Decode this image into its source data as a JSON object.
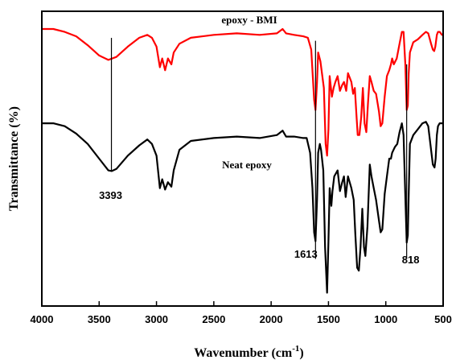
{
  "chart_data": {
    "type": "line",
    "xlabel": "Wavenumber (cm",
    "xlabel_sup": "-1",
    "xlabel_close": ")",
    "ylabel": "Transmittance (%)",
    "xlim": [
      4000,
      500
    ],
    "ylim": [
      0,
      100
    ],
    "x_reversed": true,
    "y_ticks_shown": false,
    "xticks": [
      "4000",
      "3500",
      "3000",
      "2500",
      "2000",
      "1500",
      "1000",
      "500"
    ],
    "grid": false,
    "series": [
      {
        "name": "epoxy - BMI",
        "color": "#ff0000",
        "points": [
          [
            4000,
            94
          ],
          [
            3900,
            94
          ],
          [
            3800,
            93
          ],
          [
            3700,
            91.5
          ],
          [
            3600,
            88.5
          ],
          [
            3500,
            85
          ],
          [
            3420,
            83.5
          ],
          [
            3350,
            84.5
          ],
          [
            3250,
            88
          ],
          [
            3150,
            91
          ],
          [
            3080,
            92
          ],
          [
            3040,
            91
          ],
          [
            3000,
            88
          ],
          [
            2970,
            81
          ],
          [
            2950,
            84
          ],
          [
            2925,
            80
          ],
          [
            2900,
            84
          ],
          [
            2870,
            82
          ],
          [
            2850,
            86
          ],
          [
            2800,
            89
          ],
          [
            2700,
            91
          ],
          [
            2500,
            92
          ],
          [
            2300,
            92.5
          ],
          [
            2100,
            92
          ],
          [
            1950,
            92.5
          ],
          [
            1900,
            94
          ],
          [
            1870,
            92.5
          ],
          [
            1800,
            92
          ],
          [
            1720,
            91.5
          ],
          [
            1680,
            91
          ],
          [
            1650,
            87
          ],
          [
            1625,
            70
          ],
          [
            1613,
            66.5
          ],
          [
            1600,
            76
          ],
          [
            1590,
            86
          ],
          [
            1570,
            83
          ],
          [
            1540,
            74
          ],
          [
            1525,
            55
          ],
          [
            1512,
            51
          ],
          [
            1500,
            60
          ],
          [
            1490,
            78
          ],
          [
            1470,
            71
          ],
          [
            1455,
            74
          ],
          [
            1440,
            76
          ],
          [
            1420,
            78
          ],
          [
            1400,
            73
          ],
          [
            1380,
            75
          ],
          [
            1365,
            76
          ],
          [
            1345,
            73
          ],
          [
            1330,
            79
          ],
          [
            1300,
            76
          ],
          [
            1285,
            72
          ],
          [
            1270,
            74
          ],
          [
            1255,
            64
          ],
          [
            1245,
            58
          ],
          [
            1230,
            58
          ],
          [
            1215,
            64
          ],
          [
            1200,
            74
          ],
          [
            1185,
            62
          ],
          [
            1170,
            59
          ],
          [
            1155,
            69
          ],
          [
            1140,
            78
          ],
          [
            1125,
            76
          ],
          [
            1105,
            73
          ],
          [
            1085,
            72
          ],
          [
            1060,
            66
          ],
          [
            1045,
            61
          ],
          [
            1030,
            62
          ],
          [
            1010,
            71
          ],
          [
            990,
            78
          ],
          [
            970,
            80
          ],
          [
            955,
            82
          ],
          [
            945,
            84
          ],
          [
            930,
            82
          ],
          [
            905,
            84
          ],
          [
            880,
            89
          ],
          [
            860,
            93
          ],
          [
            845,
            93
          ],
          [
            830,
            82
          ],
          [
            818,
            66.5
          ],
          [
            808,
            68
          ],
          [
            800,
            79
          ],
          [
            790,
            86
          ],
          [
            760,
            89.5
          ],
          [
            720,
            90.5
          ],
          [
            680,
            92
          ],
          [
            650,
            93
          ],
          [
            630,
            92.5
          ],
          [
            605,
            89
          ],
          [
            590,
            87
          ],
          [
            578,
            86.5
          ],
          [
            568,
            88
          ],
          [
            555,
            92
          ],
          [
            545,
            93
          ],
          [
            530,
            93
          ],
          [
            510,
            92
          ],
          [
            500,
            92
          ]
        ]
      },
      {
        "name": "Neat epoxy",
        "color": "#000000",
        "points": [
          [
            4000,
            62
          ],
          [
            3900,
            62
          ],
          [
            3800,
            61
          ],
          [
            3700,
            58.5
          ],
          [
            3600,
            55
          ],
          [
            3500,
            50
          ],
          [
            3420,
            46
          ],
          [
            3390,
            45.8
          ],
          [
            3350,
            46.5
          ],
          [
            3250,
            51
          ],
          [
            3150,
            54.5
          ],
          [
            3080,
            56.5
          ],
          [
            3040,
            55
          ],
          [
            3000,
            51
          ],
          [
            2970,
            40
          ],
          [
            2950,
            43
          ],
          [
            2925,
            39.5
          ],
          [
            2900,
            42
          ],
          [
            2870,
            40.5
          ],
          [
            2850,
            46
          ],
          [
            2800,
            53
          ],
          [
            2700,
            56
          ],
          [
            2500,
            57
          ],
          [
            2300,
            57.5
          ],
          [
            2100,
            57
          ],
          [
            1950,
            58
          ],
          [
            1900,
            59.5
          ],
          [
            1870,
            57.5
          ],
          [
            1800,
            57.5
          ],
          [
            1720,
            57
          ],
          [
            1690,
            57
          ],
          [
            1660,
            52
          ],
          [
            1640,
            40
          ],
          [
            1625,
            25
          ],
          [
            1613,
            22
          ],
          [
            1600,
            36
          ],
          [
            1590,
            52
          ],
          [
            1575,
            55
          ],
          [
            1565,
            53
          ],
          [
            1545,
            46
          ],
          [
            1530,
            20
          ],
          [
            1512,
            4.5
          ],
          [
            1500,
            22
          ],
          [
            1490,
            40
          ],
          [
            1475,
            34
          ],
          [
            1465,
            39
          ],
          [
            1450,
            44
          ],
          [
            1420,
            46
          ],
          [
            1400,
            39
          ],
          [
            1380,
            42
          ],
          [
            1365,
            44
          ],
          [
            1350,
            37
          ],
          [
            1330,
            44
          ],
          [
            1300,
            40
          ],
          [
            1280,
            36
          ],
          [
            1265,
            24
          ],
          [
            1250,
            13
          ],
          [
            1235,
            12
          ],
          [
            1220,
            20
          ],
          [
            1205,
            33
          ],
          [
            1190,
            20
          ],
          [
            1178,
            17
          ],
          [
            1160,
            27
          ],
          [
            1140,
            48
          ],
          [
            1125,
            44
          ],
          [
            1105,
            40
          ],
          [
            1085,
            36
          ],
          [
            1060,
            29
          ],
          [
            1045,
            25
          ],
          [
            1030,
            26
          ],
          [
            1010,
            38
          ],
          [
            990,
            44
          ],
          [
            970,
            50
          ],
          [
            955,
            50
          ],
          [
            945,
            52
          ],
          [
            920,
            54
          ],
          [
            900,
            55
          ],
          [
            880,
            59
          ],
          [
            860,
            62
          ],
          [
            845,
            58
          ],
          [
            832,
            40
          ],
          [
            818,
            21.5
          ],
          [
            808,
            24
          ],
          [
            800,
            38
          ],
          [
            790,
            55
          ],
          [
            760,
            58
          ],
          [
            720,
            60
          ],
          [
            680,
            62
          ],
          [
            650,
            62.5
          ],
          [
            630,
            61
          ],
          [
            605,
            53
          ],
          [
            590,
            48
          ],
          [
            575,
            47
          ],
          [
            565,
            50
          ],
          [
            555,
            58
          ],
          [
            545,
            61
          ],
          [
            530,
            62
          ],
          [
            510,
            62
          ],
          [
            500,
            62
          ]
        ]
      }
    ],
    "annotations": [
      {
        "label": "3393",
        "x": 3393,
        "y_top": 91,
        "y_bottom": 45.8
      },
      {
        "label": "1613",
        "x": 1613,
        "y_top": 90,
        "y_bottom": 16
      },
      {
        "label": "818",
        "x": 818,
        "y_top": 82,
        "y_bottom": 16
      }
    ]
  }
}
